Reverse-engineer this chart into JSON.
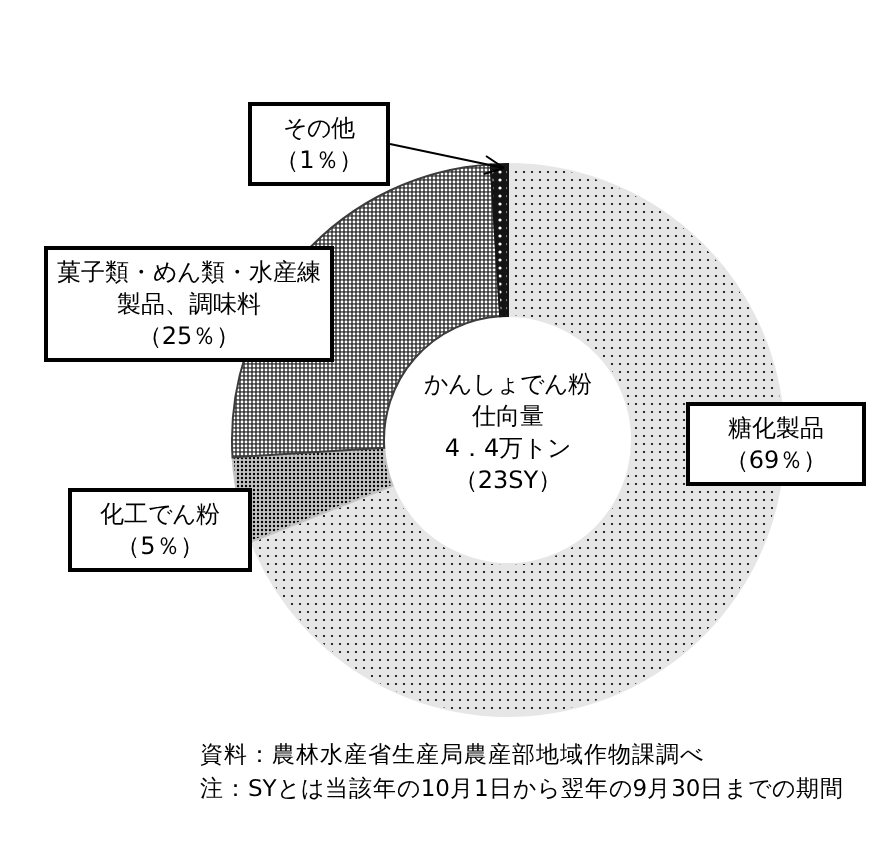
{
  "chart_data": {
    "type": "donut",
    "title": "かんしょでん粉仕向量",
    "subtitle": "4．4万トン（23SY）",
    "categories": [
      "糖化製品",
      "化工でん粉",
      "菓子類・めん類・水産練製品、調味料",
      "その他"
    ],
    "values": [
      69,
      5,
      25,
      1
    ],
    "value_labels": [
      "（69％）",
      "（5％）",
      "（25％）",
      "（1％）"
    ],
    "colors": [
      "#e6e6e6",
      "#c4c4c4",
      "#3c3c3c",
      "#141414"
    ],
    "annotations": [
      "資料：農林水産省生産局農産部地域作物課調べ",
      "注：SYとは当該年の10月1日から翌年の9月30日までの期間"
    ]
  }
}
